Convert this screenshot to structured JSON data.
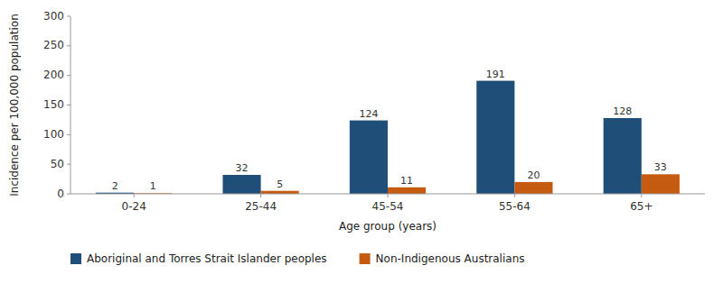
{
  "chart_data": {
    "type": "bar",
    "categories": [
      "0-24",
      "25-44",
      "45-54",
      "55-64",
      "65+"
    ],
    "series": [
      {
        "name": "Aboriginal and Torres Strait Islander peoples",
        "color": "#1F4E79",
        "values": [
          2,
          32,
          124,
          191,
          128
        ]
      },
      {
        "name": "Non-Indigenous Australians",
        "color": "#C55A11",
        "values": [
          1,
          5,
          11,
          20,
          33
        ]
      }
    ],
    "xlabel": "Age group (years)",
    "ylabel": "Incidence per 100,000 population",
    "ylim": [
      0,
      300
    ],
    "yticks": [
      0,
      50,
      100,
      150,
      200,
      250,
      300
    ],
    "data_labels": true,
    "grid": false,
    "legend": "bottom"
  }
}
